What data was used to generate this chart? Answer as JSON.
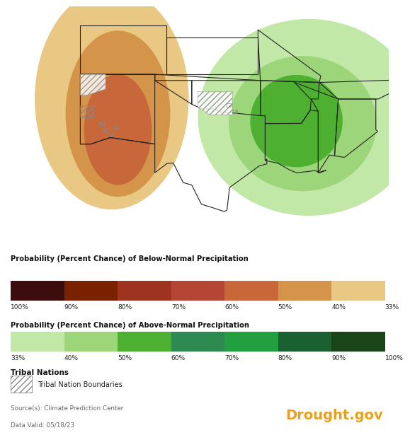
{
  "below_normal_colors": [
    "#3d0c0c",
    "#7a2200",
    "#9e3320",
    "#b54535",
    "#c8673a",
    "#d4944a",
    "#e8c882"
  ],
  "below_normal_labels": [
    "100%",
    "90%",
    "80%",
    "70%",
    "60%",
    "50%",
    "40%",
    "33%"
  ],
  "above_normal_colors": [
    "#c2e8a8",
    "#9dd67a",
    "#4db030",
    "#2e8a50",
    "#22a040",
    "#1a6030",
    "#1a4518"
  ],
  "above_normal_labels": [
    "33%",
    "40%",
    "50%",
    "60%",
    "70%",
    "80%",
    "90%",
    "100%"
  ],
  "below_title": "Probability (Percent Chance) of Below-Normal Precipitation",
  "above_title": "Probability (Percent Chance) of Above-Normal Precipitation",
  "tribal_title": "Tribal Nations",
  "tribal_label": "Tribal Nation Boundaries",
  "source_text": "Source(s): Climate Prediction Center",
  "date_text": "Data Valid: 05/18/23",
  "drought_text": "Drought.gov",
  "drought_color": "#e8a020",
  "background_color": "#ffffff",
  "map_xlim": [
    -115,
    -84
  ],
  "map_ylim": [
    24.5,
    42.5
  ]
}
